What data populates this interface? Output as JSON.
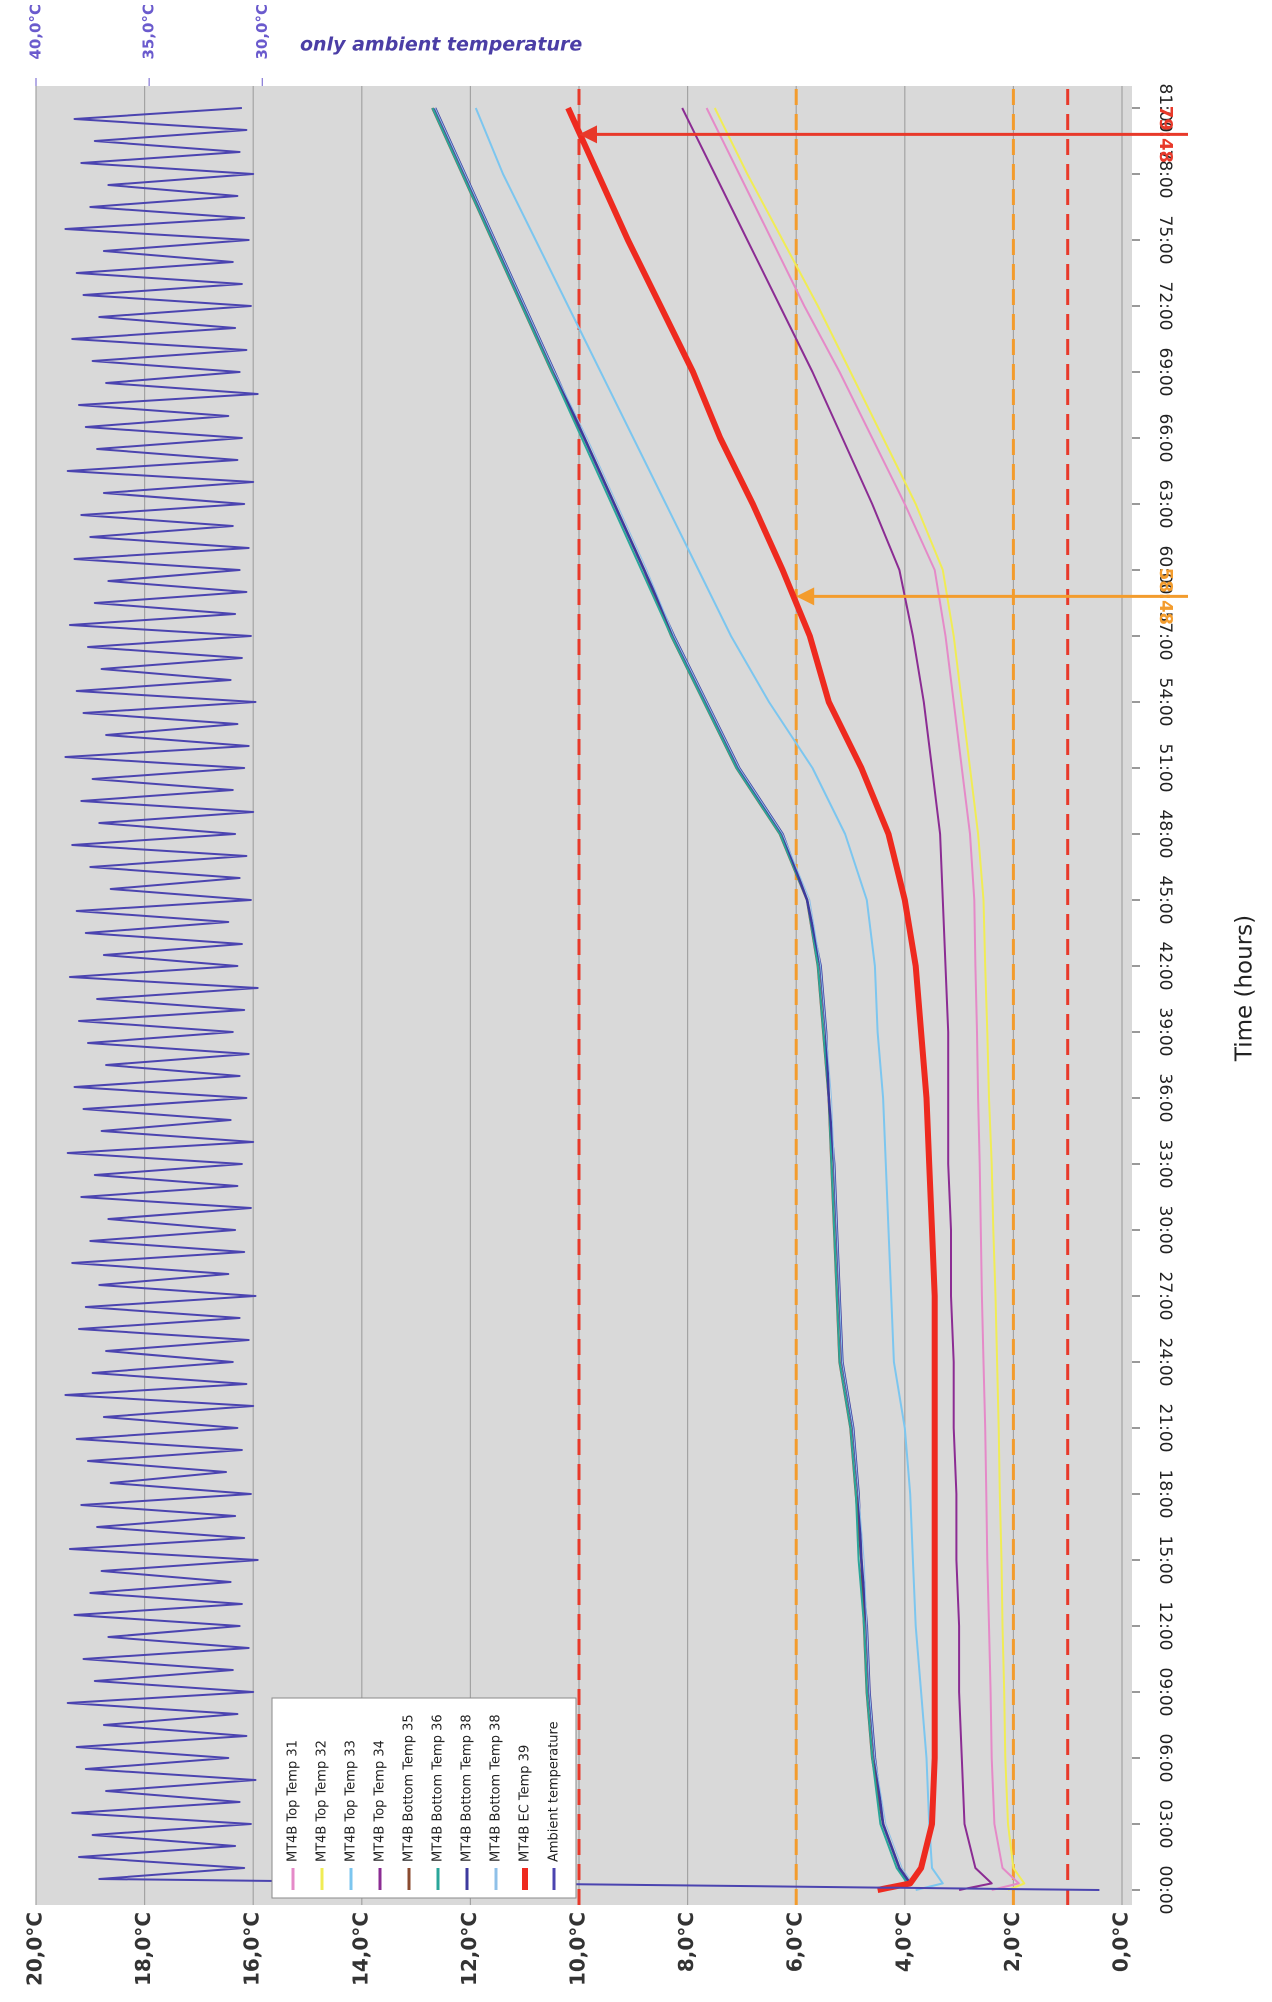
{
  "chart_data": {
    "type": "line",
    "title": "only ambient temperature",
    "xlabel": "Time (hours)",
    "x": [
      0,
      0.3,
      1,
      3,
      6,
      9,
      12,
      15,
      18,
      21,
      24,
      27,
      30,
      33,
      36,
      39,
      42,
      45,
      48,
      51,
      54,
      57,
      60,
      63,
      66,
      69,
      72,
      75,
      78,
      81
    ],
    "xlim": [
      0,
      82
    ],
    "xticks": [
      {
        "value": 0,
        "label": "00:00"
      },
      {
        "value": 3,
        "label": "03:00"
      },
      {
        "value": 6,
        "label": "06:00"
      },
      {
        "value": 9,
        "label": "09:00"
      },
      {
        "value": 12,
        "label": "12:00"
      },
      {
        "value": 15,
        "label": "15:00"
      },
      {
        "value": 18,
        "label": "18:00"
      },
      {
        "value": 21,
        "label": "21:00"
      },
      {
        "value": 24,
        "label": "24:00"
      },
      {
        "value": 27,
        "label": "27:00"
      },
      {
        "value": 30,
        "label": "30:00"
      },
      {
        "value": 33,
        "label": "33:00"
      },
      {
        "value": 36,
        "label": "36:00"
      },
      {
        "value": 39,
        "label": "39:00"
      },
      {
        "value": 42,
        "label": "42:00"
      },
      {
        "value": 45,
        "label": "45:00"
      },
      {
        "value": 48,
        "label": "48:00"
      },
      {
        "value": 51,
        "label": "51:00"
      },
      {
        "value": 54,
        "label": "54:00"
      },
      {
        "value": 57,
        "label": "57:00"
      },
      {
        "value": 60,
        "label": "60:00"
      },
      {
        "value": 63,
        "label": "63:00"
      },
      {
        "value": 66,
        "label": "66:00"
      },
      {
        "value": 69,
        "label": "69:00"
      },
      {
        "value": 72,
        "label": "72:00"
      },
      {
        "value": 75,
        "label": "75:00"
      },
      {
        "value": 78,
        "label": "78:00"
      },
      {
        "value": 81,
        "label": "81:00"
      }
    ],
    "ylim": [
      0,
      20
    ],
    "yticks": [
      {
        "value": 0,
        "label": "0,0°C"
      },
      {
        "value": 2,
        "label": "2,0°C"
      },
      {
        "value": 4,
        "label": "4,0°C"
      },
      {
        "value": 6,
        "label": "6,0°C"
      },
      {
        "value": 8,
        "label": "8,0°C"
      },
      {
        "value": 10,
        "label": "10,0°C"
      },
      {
        "value": 12,
        "label": "12,0°C"
      },
      {
        "value": 14,
        "label": "14,0°C"
      },
      {
        "value": 16,
        "label": "16,0°C"
      },
      {
        "value": 18,
        "label": "18,0°C"
      },
      {
        "value": 20,
        "label": "20,0°C"
      }
    ],
    "y2lim": [
      -8,
      40
    ],
    "y2ticks": [
      {
        "value": 40,
        "label": "40,0°C"
      },
      {
        "value": 35,
        "label": "35,0°C"
      },
      {
        "value": 30,
        "label": "30,0°C"
      }
    ],
    "grid": true,
    "hlines": [
      {
        "value": 10,
        "color": "#e8392a"
      },
      {
        "value": 6,
        "color": "#f39c2d"
      },
      {
        "value": 2,
        "color": "#f39c2d"
      },
      {
        "value": 1,
        "color": "#e8392a"
      }
    ],
    "annotations": [
      {
        "text": "58:48",
        "x": 58.8,
        "y": 6,
        "color": "#f39c2d"
      },
      {
        "text": "79:48",
        "x": 79.8,
        "y": 10,
        "color": "#e8392a"
      }
    ],
    "series": [
      {
        "name": "MT4B Top Temp 31",
        "color": "#e58ac8",
        "line_width": 2,
        "values": [
          2.4,
          1.9,
          2.2,
          2.35,
          2.4,
          2.42,
          2.45,
          2.48,
          2.5,
          2.52,
          2.55,
          2.58,
          2.6,
          2.62,
          2.65,
          2.67,
          2.7,
          2.72,
          2.8,
          2.95,
          3.1,
          3.25,
          3.45,
          4.0,
          4.6,
          5.2,
          5.85,
          6.45,
          7.05,
          7.65
        ]
      },
      {
        "name": "MT4B Top Temp 32",
        "color": "#f0ec55",
        "line_width": 2,
        "values": [
          2.1,
          1.8,
          2.0,
          2.1,
          2.15,
          2.17,
          2.2,
          2.22,
          2.25,
          2.27,
          2.3,
          2.33,
          2.37,
          2.4,
          2.45,
          2.48,
          2.52,
          2.55,
          2.65,
          2.8,
          2.95,
          3.1,
          3.3,
          3.8,
          4.4,
          5.0,
          5.6,
          6.25,
          6.9,
          7.5
        ]
      },
      {
        "name": "MT4B Top Temp 33",
        "color": "#7cc6ef",
        "line_width": 2,
        "values": [
          3.8,
          3.3,
          3.5,
          3.55,
          3.6,
          3.7,
          3.8,
          3.85,
          3.9,
          4.0,
          4.2,
          4.25,
          4.3,
          4.35,
          4.4,
          4.5,
          4.55,
          4.7,
          5.1,
          5.7,
          6.5,
          7.2,
          7.8,
          8.4,
          9.0,
          9.6,
          10.2,
          10.8,
          11.4,
          11.9
        ]
      },
      {
        "name": "MT4B Top Temp 34",
        "color": "#8b2c93",
        "line_width": 2,
        "values": [
          3.0,
          2.4,
          2.7,
          2.9,
          2.95,
          3.0,
          3.0,
          3.05,
          3.05,
          3.1,
          3.1,
          3.15,
          3.15,
          3.2,
          3.2,
          3.2,
          3.25,
          3.3,
          3.35,
          3.5,
          3.65,
          3.85,
          4.1,
          4.6,
          5.15,
          5.7,
          6.3,
          6.9,
          7.5,
          8.1
        ]
      },
      {
        "name": "MT4B Bottom Temp 35",
        "color": "#8a4a2f",
        "line_width": 2.5,
        "values": [
          4.4,
          3.9,
          4.1,
          4.4,
          4.6,
          4.7,
          4.75,
          4.8,
          4.9,
          5.0,
          5.2,
          5.25,
          5.3,
          5.35,
          5.4,
          5.5,
          5.6,
          5.8,
          6.3,
          7.1,
          7.7,
          8.3,
          8.8,
          9.35,
          9.9,
          10.5,
          11.05,
          11.6,
          12.15,
          12.7
        ]
      },
      {
        "name": "MT4B Bottom Temp 36",
        "color": "#2aa69a",
        "line_width": 2,
        "values": [
          4.4,
          3.95,
          4.15,
          4.45,
          4.6,
          4.7,
          4.75,
          4.85,
          4.9,
          5.0,
          5.2,
          5.25,
          5.3,
          5.35,
          5.4,
          5.5,
          5.6,
          5.8,
          6.3,
          7.1,
          7.7,
          8.3,
          8.85,
          9.4,
          9.95,
          10.5,
          11.05,
          11.6,
          12.15,
          12.7
        ]
      },
      {
        "name": "MT4B Bottom Temp 38",
        "color": "#3d3a9e",
        "line_width": 2.5,
        "values": [
          4.4,
          3.9,
          4.1,
          4.4,
          4.55,
          4.65,
          4.7,
          4.8,
          4.85,
          4.95,
          5.15,
          5.2,
          5.25,
          5.3,
          5.4,
          5.45,
          5.55,
          5.8,
          6.25,
          7.05,
          7.65,
          8.25,
          8.8,
          9.35,
          9.9,
          10.45,
          11.0,
          11.55,
          12.1,
          12.65
        ]
      },
      {
        "name": "MT4B Bottom Temp 38",
        "color": "#8fc0e8",
        "line_width": 1,
        "values": [
          4.35,
          3.85,
          4.05,
          4.35,
          4.55,
          4.65,
          4.7,
          4.75,
          4.85,
          4.95,
          5.15,
          5.2,
          5.25,
          5.3,
          5.35,
          5.45,
          5.55,
          5.75,
          6.25,
          7.05,
          7.65,
          8.25,
          8.75,
          9.3,
          9.85,
          10.45,
          11.0,
          11.55,
          12.1,
          12.65
        ]
      },
      {
        "name": "MT4B EC Temp 39",
        "color": "#ee2a1f",
        "line_width": 6,
        "values": [
          4.5,
          3.9,
          3.7,
          3.5,
          3.45,
          3.45,
          3.45,
          3.45,
          3.45,
          3.45,
          3.45,
          3.45,
          3.5,
          3.55,
          3.6,
          3.7,
          3.8,
          4.0,
          4.3,
          4.8,
          5.4,
          5.75,
          6.25,
          6.8,
          7.4,
          7.9,
          8.5,
          9.1,
          9.65,
          10.2
        ]
      },
      {
        "name": "Ambient temperature",
        "color": "#4b44b0",
        "line_width": 2,
        "axis": "y2",
        "x": [
          0,
          0.5,
          1,
          1.5,
          2,
          2.5,
          3,
          3.5,
          4,
          4.5,
          5,
          5.5,
          6,
          6.5,
          7,
          7.5,
          8,
          8.5,
          9,
          9.5,
          10,
          10.5,
          11,
          11.5,
          12,
          12.5,
          13,
          13.5,
          14,
          14.5,
          15,
          15.5,
          16,
          16.5,
          17,
          17.5,
          18,
          18.5,
          19,
          19.5,
          20,
          20.5,
          21,
          21.5,
          22,
          22.5,
          23,
          23.5,
          24,
          24.5,
          25,
          25.5,
          26,
          26.5,
          27,
          27.5,
          28,
          28.5,
          29,
          29.5,
          30,
          30.5,
          31,
          31.5,
          32,
          32.5,
          33,
          33.5,
          34,
          34.5,
          35,
          35.5,
          36,
          36.5,
          37,
          37.5,
          38,
          38.5,
          39,
          39.5,
          40,
          40.5,
          41,
          41.5,
          42,
          42.5,
          43,
          43.5,
          44,
          44.5,
          45,
          45.5,
          46,
          46.5,
          47,
          47.5,
          48,
          48.5,
          49,
          49.5,
          50,
          50.5,
          51,
          51.5,
          52,
          52.5,
          53,
          53.5,
          54,
          54.5,
          55,
          55.5,
          56,
          56.5,
          57,
          57.5,
          58,
          58.5,
          59,
          59.5,
          60,
          60.5,
          61,
          61.5,
          62,
          62.5,
          63,
          63.5,
          64,
          64.5,
          65,
          65.5,
          66,
          66.5,
          67,
          67.5,
          68,
          68.5,
          69,
          69.5,
          70,
          70.5,
          71,
          71.5,
          72,
          72.5,
          73,
          73.5,
          74,
          74.5,
          75,
          75.5,
          76,
          76.5,
          77,
          77.5,
          78,
          78.5,
          79,
          79.5,
          80,
          80.5,
          81
        ],
        "values": [
          -7,
          37.2,
          30.8,
          38.1,
          31.2,
          37.5,
          30.5,
          38.4,
          31.0,
          36.9,
          30.3,
          37.8,
          31.5,
          38.2,
          30.7,
          37.0,
          31.1,
          38.6,
          30.4,
          37.4,
          31.3,
          37.9,
          30.6,
          36.8,
          31.0,
          38.3,
          30.9,
          37.6,
          31.4,
          37.1,
          30.2,
          38.5,
          30.8,
          37.3,
          31.2,
          38.0,
          30.5,
          36.7,
          31.6,
          37.7,
          30.9,
          38.2,
          31.1,
          37.0,
          30.4,
          38.7,
          30.7,
          37.5,
          31.3,
          36.9,
          30.6,
          38.1,
          31.0,
          37.8,
          30.3,
          37.2,
          31.5,
          38.4,
          30.8,
          37.6,
          31.2,
          36.8,
          30.5,
          38.0,
          31.1,
          37.4,
          30.9,
          38.6,
          30.4,
          37.1,
          31.4,
          37.9,
          30.7,
          38.3,
          31.0,
          36.9,
          30.6,
          37.7,
          31.3,
          38.1,
          30.8,
          37.3,
          30.2,
          38.5,
          31.1,
          37.0,
          30.9,
          37.8,
          31.5,
          38.2,
          30.5,
          36.7,
          31.0,
          37.6,
          30.7,
          38.4,
          31.2,
          37.2,
          30.4,
          38.0,
          31.3,
          37.5,
          30.8,
          38.7,
          30.6,
          36.9,
          31.1,
          37.9,
          30.3,
          38.2,
          31.4,
          37.1,
          30.9,
          37.7,
          30.5,
          38.5,
          31.2,
          37.4,
          30.7,
          36.8,
          31.0,
          38.3,
          30.6,
          37.6,
          31.3,
          38.0,
          30.8,
          37.0,
          30.4,
          38.6,
          31.1,
          37.3,
          30.9,
          37.8,
          31.5,
          38.1,
          30.2,
          36.9,
          31.0,
          37.5,
          30.7,
          38.4,
          31.2,
          37.2,
          30.5,
          37.9,
          30.9,
          38.2,
          31.3,
          37.0,
          30.6,
          38.7,
          30.8,
          37.6,
          31.1,
          36.8,
          30.4,
          38.0,
          31.0,
          37.4,
          30.7,
          38.3,
          30.9
        ]
      }
    ]
  }
}
